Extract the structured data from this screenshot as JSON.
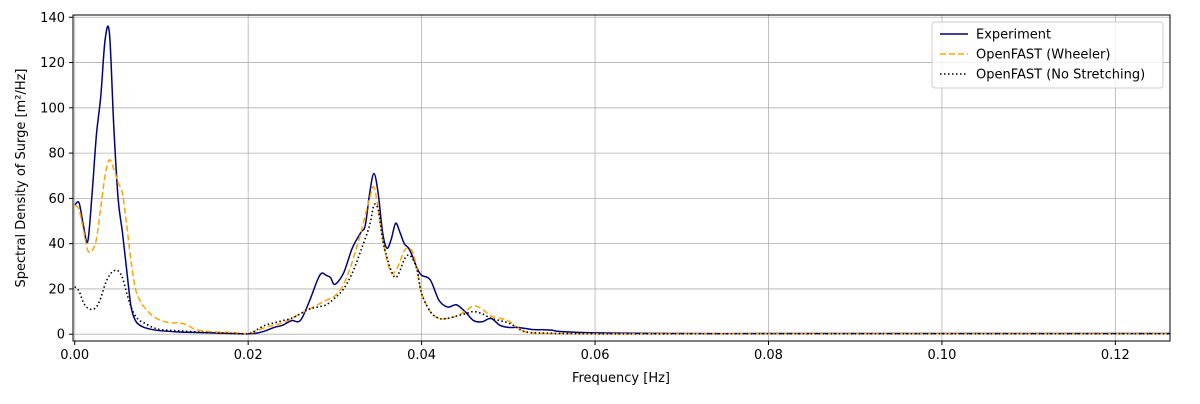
{
  "chart_data": {
    "type": "line",
    "xlabel": "Frequency [Hz]",
    "ylabel": "Spectral Density of Surge [m²/Hz]",
    "xlim": [
      -0.0002,
      0.1263
    ],
    "ylim": [
      -3,
      141
    ],
    "xticks": [
      0.0,
      0.02,
      0.04,
      0.06,
      0.08,
      0.1,
      0.12
    ],
    "xtick_labels": [
      "0.00",
      "0.02",
      "0.04",
      "0.06",
      "0.08",
      "0.10",
      "0.12"
    ],
    "yticks": [
      0,
      20,
      40,
      60,
      80,
      100,
      120,
      140
    ],
    "ytick_labels": [
      "0",
      "20",
      "40",
      "60",
      "80",
      "100",
      "120",
      "140"
    ],
    "grid": true,
    "legend_position": "top-right",
    "series": [
      {
        "name": "Experiment",
        "color": "#000080",
        "dash": "solid",
        "x": [
          0,
          0.0005,
          0.001,
          0.0015,
          0.002,
          0.0025,
          0.003,
          0.0035,
          0.004,
          0.0045,
          0.005,
          0.0055,
          0.006,
          0.0065,
          0.007,
          0.0075,
          0.008,
          0.009,
          0.01,
          0.012,
          0.015,
          0.018,
          0.02,
          0.021,
          0.022,
          0.023,
          0.024,
          0.025,
          0.026,
          0.027,
          0.028,
          0.0285,
          0.029,
          0.0295,
          0.03,
          0.031,
          0.032,
          0.033,
          0.0335,
          0.034,
          0.0345,
          0.035,
          0.0355,
          0.036,
          0.0365,
          0.037,
          0.0375,
          0.038,
          0.0385,
          0.039,
          0.0395,
          0.04,
          0.041,
          0.042,
          0.043,
          0.044,
          0.045,
          0.046,
          0.047,
          0.048,
          0.049,
          0.05,
          0.051,
          0.052,
          0.053,
          0.054,
          0.055,
          0.056,
          0.06,
          0.07,
          0.08,
          0.09,
          0.1,
          0.11,
          0.12,
          0.1263
        ],
        "y": [
          57,
          58,
          48,
          41,
          62,
          88,
          105,
          130,
          133,
          92,
          60,
          45,
          28,
          12,
          6,
          4,
          3,
          2,
          1.5,
          1,
          0.7,
          0.3,
          0.2,
          0.5,
          1.5,
          3,
          4,
          6,
          6,
          14,
          24,
          27,
          26,
          25,
          22,
          27,
          38,
          45,
          48,
          62,
          71,
          62,
          45,
          38,
          42,
          49,
          45,
          40,
          38,
          34,
          29,
          26,
          24,
          15,
          12,
          13,
          10,
          6,
          5.5,
          7,
          4,
          3,
          3,
          2.5,
          2,
          2,
          1.8,
          1.2,
          0.6,
          0.3,
          0.3,
          0.3,
          0.3,
          0.3,
          0.3,
          0.3
        ]
      },
      {
        "name": "OpenFAST (Wheeler)",
        "color": "#FFA500",
        "dash": "dashed",
        "x": [
          0,
          0.0005,
          0.001,
          0.0015,
          0.002,
          0.0025,
          0.003,
          0.0035,
          0.004,
          0.0045,
          0.005,
          0.0055,
          0.006,
          0.0065,
          0.007,
          0.0075,
          0.008,
          0.009,
          0.01,
          0.011,
          0.012,
          0.013,
          0.014,
          0.016,
          0.018,
          0.02,
          0.021,
          0.022,
          0.023,
          0.024,
          0.025,
          0.026,
          0.027,
          0.028,
          0.029,
          0.03,
          0.031,
          0.032,
          0.033,
          0.034,
          0.0345,
          0.035,
          0.0355,
          0.036,
          0.0365,
          0.037,
          0.0375,
          0.038,
          0.0385,
          0.039,
          0.0395,
          0.04,
          0.041,
          0.042,
          0.043,
          0.044,
          0.045,
          0.046,
          0.047,
          0.048,
          0.049,
          0.05,
          0.051,
          0.052,
          0.053,
          0.055,
          0.06,
          0.07,
          0.08,
          0.09,
          0.1,
          0.11,
          0.12,
          0.1263
        ],
        "y": [
          57,
          55,
          46,
          37,
          37,
          42,
          56,
          70,
          77,
          73,
          67,
          62,
          48,
          32,
          20,
          15,
          12,
          8,
          6,
          5,
          5,
          4,
          2,
          1,
          0.8,
          0.3,
          1.5,
          3,
          4,
          5,
          7,
          9,
          11,
          13,
          15,
          17,
          22,
          32,
          45,
          60,
          65,
          55,
          42,
          33,
          27,
          28,
          32,
          37,
          38,
          36,
          28,
          18,
          10,
          7,
          7,
          8,
          10,
          12.5,
          11,
          8,
          7,
          6,
          3,
          1,
          0.5,
          0.3,
          0.2,
          0.2,
          0.2,
          0.2,
          0.2,
          0.2,
          0.2,
          0.2
        ]
      },
      {
        "name": "OpenFAST (No Stretching)",
        "color": "#000000",
        "dash": "dotted",
        "x": [
          0,
          0.0005,
          0.001,
          0.0015,
          0.002,
          0.0025,
          0.003,
          0.0035,
          0.004,
          0.0045,
          0.005,
          0.0055,
          0.006,
          0.0065,
          0.007,
          0.0075,
          0.008,
          0.009,
          0.01,
          0.012,
          0.015,
          0.018,
          0.02,
          0.021,
          0.022,
          0.023,
          0.024,
          0.025,
          0.026,
          0.027,
          0.028,
          0.029,
          0.03,
          0.031,
          0.032,
          0.033,
          0.034,
          0.0345,
          0.035,
          0.0355,
          0.036,
          0.0365,
          0.037,
          0.0375,
          0.038,
          0.0385,
          0.039,
          0.0395,
          0.04,
          0.041,
          0.042,
          0.043,
          0.044,
          0.045,
          0.046,
          0.047,
          0.048,
          0.049,
          0.05,
          0.051,
          0.052,
          0.055,
          0.06,
          0.07,
          0.08,
          0.09,
          0.1,
          0.11,
          0.12,
          0.1263
        ],
        "y": [
          21,
          19,
          14,
          11.5,
          11,
          12,
          16,
          22,
          26,
          28,
          28,
          25,
          18,
          12,
          8,
          6,
          5,
          3,
          2,
          1.5,
          0.8,
          0.4,
          0.2,
          2,
          4,
          5,
          6,
          7,
          9,
          11,
          12,
          13,
          16,
          20,
          27,
          37,
          48,
          57,
          55,
          42,
          34,
          28,
          25,
          28,
          33,
          35,
          33,
          28,
          18,
          10,
          7,
          7,
          8,
          9,
          10,
          9,
          7,
          6,
          5,
          3,
          1,
          0.4,
          0.2,
          0.2,
          0.2,
          0.2,
          0.2,
          0.2,
          0.2,
          0.2
        ]
      }
    ]
  }
}
